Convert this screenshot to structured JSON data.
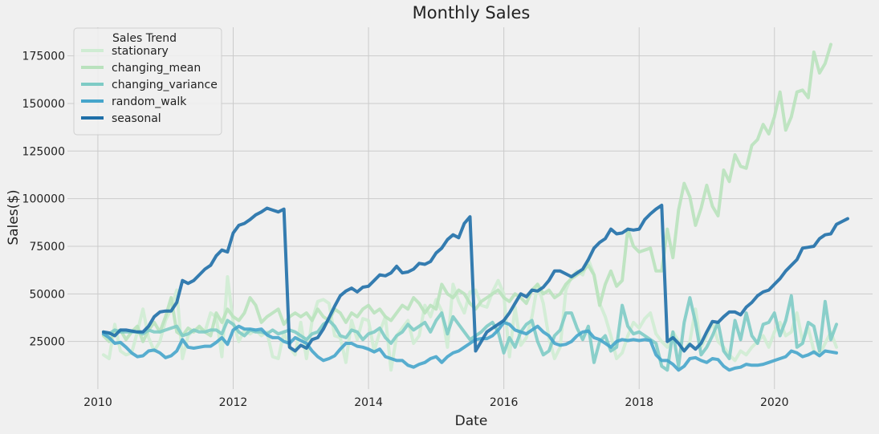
{
  "chart_data": {
    "type": "line",
    "title": "Monthly Sales",
    "xlabel": "Date",
    "ylabel": "Sales($)",
    "xlim": [
      2009.55,
      2021.45
    ],
    "ylim": [
      0,
      190000
    ],
    "x_ticks": [
      2010,
      2012,
      2014,
      2016,
      2018,
      2020
    ],
    "x_tick_labels": [
      "2010",
      "2012",
      "2014",
      "2016",
      "2018",
      "2020"
    ],
    "y_ticks": [
      25000,
      50000,
      75000,
      100000,
      125000,
      150000,
      175000
    ],
    "y_tick_labels": [
      "25000",
      "50000",
      "75000",
      "100000",
      "125000",
      "150000",
      "175000"
    ],
    "grid": true,
    "legend": {
      "title": "Sales Trend",
      "position": "top-left"
    },
    "series": [
      {
        "name": "stationary",
        "color": "#cfecd3",
        "start": 2010.083,
        "step": 0.08333,
        "values": [
          18000,
          16000,
          34000,
          20000,
          18000,
          19000,
          30000,
          42000,
          27000,
          20000,
          25000,
          36000,
          42000,
          52000,
          16000,
          28000,
          31000,
          32000,
          30000,
          40000,
          38000,
          17000,
          59000,
          35000,
          25000,
          31000,
          29000,
          31000,
          28000,
          30000,
          17000,
          16000,
          30000,
          22000,
          18000,
          35000,
          16000,
          36000,
          46000,
          47000,
          45000,
          28000,
          27000,
          14000,
          36000,
          26000,
          37000,
          36000,
          20000,
          30000,
          38000,
          10000,
          28000,
          32000,
          36000,
          24000,
          28000,
          44000,
          38000,
          47000,
          41000,
          22000,
          55000,
          46000,
          40000,
          51000,
          52000,
          44000,
          43000,
          51000,
          57000,
          50000,
          17000,
          43000,
          23000,
          27000,
          38000,
          55000,
          45000,
          27000,
          16000,
          22000,
          52000,
          59000,
          62000,
          60000,
          68000,
          60000,
          45000,
          38000,
          28000,
          16000,
          19000,
          28000,
          35000,
          32000,
          37000,
          40000,
          29000,
          25000,
          22000,
          30000,
          25000,
          20000,
          25000,
          42000,
          22000,
          28000,
          35000,
          25000,
          22000,
          18000,
          15000,
          20000,
          18000,
          22000,
          25000,
          28000,
          22000,
          30000,
          35000,
          28000,
          30000,
          40000,
          25000,
          32000,
          20000,
          18000,
          24000,
          30000,
          22000
        ]
      },
      {
        "name": "changing_mean",
        "color": "#b9e2bd",
        "start": 2010.083,
        "step": 0.08333,
        "values": [
          28000,
          25000,
          30000,
          31000,
          26000,
          30000,
          33000,
          25000,
          31000,
          35000,
          30000,
          38000,
          48000,
          30000,
          28000,
          32000,
          30000,
          33000,
          30000,
          28000,
          40000,
          35000,
          42000,
          38000,
          36000,
          40000,
          48000,
          44000,
          35000,
          38000,
          40000,
          42000,
          34000,
          38000,
          40000,
          38000,
          40000,
          36000,
          42000,
          38000,
          36000,
          42000,
          40000,
          35000,
          40000,
          38000,
          42000,
          44000,
          40000,
          42000,
          38000,
          36000,
          40000,
          44000,
          42000,
          48000,
          45000,
          40000,
          44000,
          42000,
          55000,
          50000,
          48000,
          52000,
          50000,
          45000,
          42000,
          46000,
          48000,
          50000,
          52000,
          48000,
          46000,
          50000,
          48000,
          45000,
          52000,
          55000,
          50000,
          52000,
          48000,
          50000,
          55000,
          58000,
          60000,
          62000,
          65000,
          60000,
          44000,
          55000,
          62000,
          54000,
          57000,
          84000,
          75000,
          72000,
          73000,
          74000,
          62000,
          62000,
          84000,
          69000,
          94000,
          108000,
          101000,
          86000,
          95000,
          107000,
          96000,
          91000,
          115000,
          109000,
          123000,
          117000,
          116000,
          128000,
          131000,
          139000,
          134000,
          143000,
          156000,
          136000,
          143000,
          156000,
          157000,
          153000,
          177000,
          166000,
          171000,
          181000
        ]
      },
      {
        "name": "changing_variance",
        "color": "#7ecbc5",
        "start": 2010.083,
        "step": 0.08333,
        "values": [
          30000,
          29000,
          31000,
          30000,
          30000,
          30000,
          30000,
          29000,
          31000,
          30000,
          30000,
          31000,
          32000,
          33000,
          28000,
          29000,
          31000,
          30000,
          30000,
          31000,
          31000,
          29000,
          36000,
          34000,
          30000,
          28000,
          31000,
          30000,
          30000,
          29000,
          31000,
          29000,
          30000,
          31000,
          30000,
          28000,
          26000,
          29000,
          30000,
          34000,
          36000,
          33000,
          28000,
          27000,
          31000,
          30000,
          26000,
          29000,
          30000,
          32000,
          27000,
          24000,
          28000,
          30000,
          34000,
          31000,
          33000,
          35000,
          30000,
          36000,
          40000,
          29000,
          38000,
          34000,
          30000,
          26000,
          28000,
          30000,
          33000,
          35000,
          30000,
          19000,
          27000,
          22000,
          30000,
          34000,
          36000,
          25000,
          18000,
          20000,
          28000,
          31000,
          40000,
          40000,
          32000,
          26000,
          33000,
          14000,
          25000,
          28000,
          20000,
          22000,
          44000,
          33000,
          29000,
          30000,
          28000,
          26000,
          24000,
          12000,
          10000,
          30000,
          12000,
          35000,
          48000,
          35000,
          18000,
          22000,
          28000,
          35000,
          20000,
          16000,
          36000,
          26000,
          40000,
          28000,
          24000,
          34000,
          35000,
          40000,
          28000,
          36000,
          49000,
          22000,
          24000,
          35000,
          33000,
          20000,
          46000,
          26000,
          34000
        ]
      },
      {
        "name": "random_walk",
        "color": "#46a5cb",
        "start": 2010.083,
        "step": 0.08333,
        "values": [
          29000,
          27000,
          24000,
          24500,
          22000,
          19000,
          17000,
          17500,
          20000,
          20500,
          19000,
          16500,
          17500,
          20000,
          26000,
          22000,
          21500,
          22000,
          22500,
          22500,
          24500,
          27000,
          23500,
          31000,
          33000,
          31500,
          31500,
          31000,
          31500,
          28500,
          27000,
          27000,
          25000,
          24000,
          27000,
          25500,
          24000,
          20000,
          17000,
          15000,
          16000,
          17500,
          21000,
          24000,
          24000,
          22500,
          22000,
          21000,
          19500,
          21000,
          17000,
          16000,
          15000,
          15000,
          12500,
          11500,
          13000,
          14000,
          16000,
          17000,
          14000,
          17000,
          19000,
          20000,
          22000,
          24000,
          26000,
          26500,
          26500,
          28000,
          31000,
          35000,
          34000,
          31000,
          30000,
          29000,
          31000,
          33000,
          30000,
          28000,
          24000,
          23000,
          23500,
          25000,
          28000,
          30000,
          30500,
          27000,
          26000,
          24000,
          22000,
          25000,
          26000,
          25500,
          26000,
          25500,
          26000,
          25500,
          18000,
          15000,
          15000,
          13000,
          10000,
          12000,
          16000,
          16500,
          15000,
          14000,
          16000,
          15500,
          12000,
          10000,
          11000,
          11500,
          13000,
          12500,
          12500,
          13000,
          14000,
          15000,
          16000,
          17000,
          20000,
          19000,
          17000,
          18000,
          19500,
          17500,
          20000,
          19500,
          19000
        ]
      },
      {
        "name": "seasonal",
        "color": "#1f6fa8",
        "start": 2010.083,
        "step": 0.08333,
        "values": [
          30000,
          29500,
          28000,
          31000,
          31000,
          30500,
          30000,
          30000,
          33000,
          38000,
          40500,
          41000,
          41000,
          45500,
          57000,
          55500,
          57000,
          60000,
          63000,
          65000,
          70000,
          73000,
          72000,
          82000,
          86000,
          87000,
          89000,
          91500,
          93000,
          95000,
          94000,
          93000,
          94500,
          22000,
          20000,
          23000,
          21500,
          26000,
          27000,
          31500,
          37500,
          43500,
          49000,
          51500,
          53000,
          51000,
          53500,
          54000,
          57000,
          60000,
          59500,
          61000,
          64500,
          61000,
          61500,
          63000,
          66000,
          65500,
          67000,
          71500,
          74000,
          78500,
          81000,
          79500,
          87000,
          90500,
          20000,
          25000,
          30000,
          32000,
          34000,
          36000,
          40000,
          45000,
          50000,
          48500,
          52000,
          51500,
          53500,
          57000,
          62000,
          62000,
          60500,
          59000,
          61000,
          63000,
          68000,
          74000,
          77000,
          79000,
          84000,
          81500,
          82000,
          84000,
          83500,
          84000,
          89000,
          92000,
          94500,
          96500,
          25000,
          27000,
          24000,
          20000,
          23500,
          21000,
          24000,
          30000,
          35500,
          35000,
          38000,
          40500,
          40500,
          39000,
          43000,
          45500,
          49000,
          51000,
          52000,
          55000,
          58000,
          62000,
          65000,
          68000,
          74000,
          74500,
          75000,
          79000,
          81000,
          81500,
          86500,
          88000,
          89500
        ]
      }
    ]
  }
}
